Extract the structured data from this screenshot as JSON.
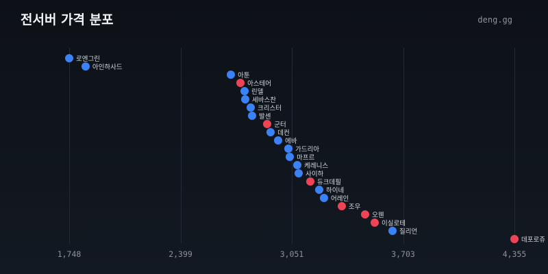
{
  "header": {
    "title": "전서버 가격 분포",
    "brand": "deng.gg"
  },
  "colors": {
    "background": "#0d1117",
    "blue": "#3b82f6",
    "red": "#ef4456",
    "grid": "#232a34",
    "tick_text": "#8b929c",
    "label_text": "#d6dae0"
  },
  "chart_data": {
    "type": "scatter",
    "title": "전서버 가격 분포",
    "xlabel": "",
    "ylabel": "",
    "xlim": [
      1748,
      4355
    ],
    "x_ticks": [
      "1,748",
      "2,399",
      "3,051",
      "3,703",
      "4,355"
    ],
    "grid": "vertical",
    "legend": "none",
    "points": [
      {
        "name": "로엔그린",
        "value": 1748,
        "color": "blue"
      },
      {
        "name": "아인하사드",
        "value": 1844,
        "color": "blue"
      },
      {
        "name": "아툰",
        "value": 2695,
        "color": "blue"
      },
      {
        "name": "아스테어",
        "value": 2751,
        "color": "red"
      },
      {
        "name": "린델",
        "value": 2775,
        "color": "blue"
      },
      {
        "name": "세바스찬",
        "value": 2779,
        "color": "blue"
      },
      {
        "name": "크리스터",
        "value": 2811,
        "color": "blue"
      },
      {
        "name": "발센",
        "value": 2819,
        "color": "blue"
      },
      {
        "name": "군터",
        "value": 2908,
        "color": "red"
      },
      {
        "name": "데컨",
        "value": 2928,
        "color": "blue"
      },
      {
        "name": "에바",
        "value": 2972,
        "color": "blue"
      },
      {
        "name": "가드리아",
        "value": 3032,
        "color": "blue"
      },
      {
        "name": "마프르",
        "value": 3040,
        "color": "blue"
      },
      {
        "name": "케레니스",
        "value": 3084,
        "color": "blue"
      },
      {
        "name": "사이하",
        "value": 3092,
        "color": "blue"
      },
      {
        "name": "듀크데필",
        "value": 3160,
        "color": "red"
      },
      {
        "name": "하이네",
        "value": 3212,
        "color": "blue"
      },
      {
        "name": "어레인",
        "value": 3240,
        "color": "blue"
      },
      {
        "name": "조우",
        "value": 3344,
        "color": "red"
      },
      {
        "name": "오웬",
        "value": 3481,
        "color": "red"
      },
      {
        "name": "이실로테",
        "value": 3537,
        "color": "red"
      },
      {
        "name": "질리언",
        "value": 3641,
        "color": "blue"
      },
      {
        "name": "데포로쥬",
        "value": 4355,
        "color": "red"
      }
    ]
  }
}
